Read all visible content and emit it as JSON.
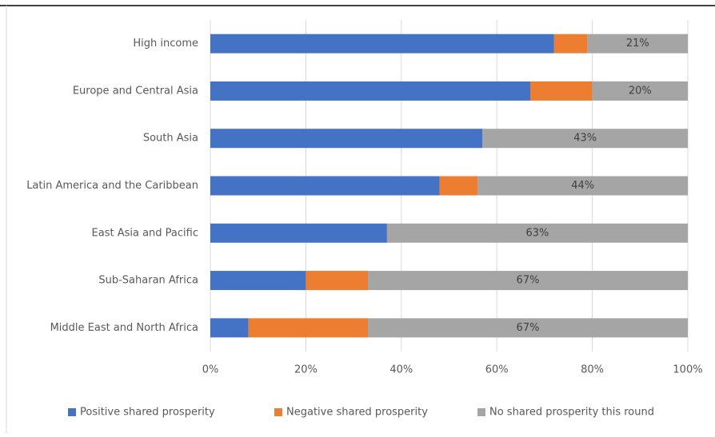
{
  "chart_data": {
    "type": "stacked_bar_horizontal",
    "categories": [
      "High income",
      "Europe and Central Asia",
      "South Asia",
      "Latin America and the Caribbean",
      "East Asia and Pacific",
      "Sub-Saharan Africa",
      "Middle East and North Africa"
    ],
    "series": [
      {
        "name": "Positive shared prosperity",
        "color": "#4472c4",
        "values": [
          72,
          67,
          57,
          48,
          37,
          20,
          8
        ]
      },
      {
        "name": "Negative shared prosperity",
        "color": "#ed7d31",
        "values": [
          7,
          13,
          0,
          8,
          0,
          13,
          25
        ]
      },
      {
        "name": "No shared prosperity this round",
        "color": "#a5a5a5",
        "values": [
          21,
          20,
          43,
          44,
          63,
          67,
          67
        ],
        "value_labels": [
          "21%",
          "20%",
          "43%",
          "44%",
          "63%",
          "67%",
          "67%"
        ]
      }
    ],
    "xlim": [
      0,
      100
    ],
    "xticks": [
      {
        "value": 0,
        "label": "0%"
      },
      {
        "value": 20,
        "label": "20%"
      },
      {
        "value": 40,
        "label": "40%"
      },
      {
        "value": 60,
        "label": "60%"
      },
      {
        "value": 80,
        "label": "80%"
      },
      {
        "value": 100,
        "label": "100%"
      }
    ],
    "grid": true,
    "legend": "bottom"
  }
}
